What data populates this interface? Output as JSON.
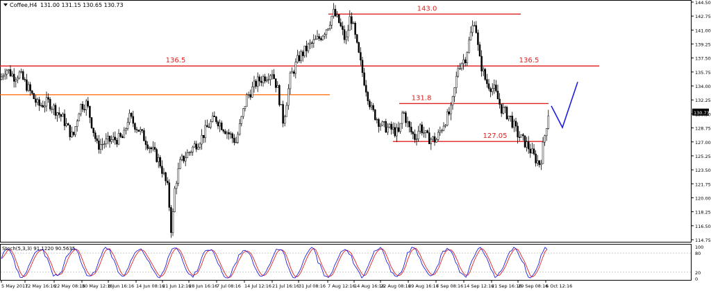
{
  "header": {
    "symbol_label": "Coffee,H4",
    "ohlc_label": "131.00 131.15 130.65 130.73"
  },
  "indicator": {
    "label": "Stoch(5,3,3) 91.1220 90.5635",
    "scale_labels": [
      "100",
      "80",
      "20",
      "0"
    ]
  },
  "price_axis": {
    "labels": [
      "144.50",
      "142.75",
      "141.00",
      "139.25",
      "137.50",
      "135.75",
      "134.00",
      "132.25",
      "130.50",
      "128.75",
      "127.00",
      "125.25",
      "123.50",
      "121.75",
      "120.00",
      "118.25",
      "116.50",
      "114.75"
    ],
    "current_price": "130.73"
  },
  "time_axis": {
    "labels": [
      "5 May 2017",
      "12 May 16:16",
      "22 May 08:16",
      "30 May 12:16",
      "6 Jun 16:16",
      "14 Jun 08:16",
      "21 Jun 12:16",
      "28 Jun 16:16",
      "7 Jul 08:16",
      "14 Jul 12:16",
      "21 Jul 16:16",
      "31 Jul 08:16",
      "7 Aug 12:16",
      "14 Aug 16:16",
      "22 Aug 08:16",
      "29 Aug 16:16",
      "7 Sep 08:16",
      "14 Sep 12:16",
      "21 Sep 16:16",
      "29 Sep 08:16",
      "6 Oct 12:16"
    ]
  },
  "levels": [
    {
      "label": "143.0",
      "value": 143.0,
      "color": "#e02020"
    },
    {
      "label": "136.5",
      "value": 136.5,
      "color": "#e02020"
    },
    {
      "label": "136.5",
      "value": 136.5,
      "color": "#e02020"
    },
    {
      "label": "131.8",
      "value": 131.8,
      "color": "#e02020"
    },
    {
      "label": "127.05",
      "value": 127.05,
      "color": "#e02020"
    },
    {
      "label": "",
      "value": 132.9,
      "color": "#ff6600"
    }
  ],
  "colors": {
    "candle": "#000000",
    "projection": "#1e1ee0",
    "stoch_main": "#1e1ee0",
    "stoch_signal": "#e02020",
    "current_price_bg": "#000000"
  },
  "chart_data": {
    "type": "candlestick",
    "title": "",
    "symbol": "Coffee",
    "timeframe": "H4",
    "ylim": [
      114.75,
      144.5
    ],
    "price_path": [
      [
        0,
        134.8
      ],
      [
        8,
        136.2
      ],
      [
        20,
        135.2
      ],
      [
        28,
        135.5
      ],
      [
        40,
        133.8
      ],
      [
        55,
        131.5
      ],
      [
        70,
        132.0
      ],
      [
        90,
        130.0
      ],
      [
        105,
        127.5
      ],
      [
        115,
        131.5
      ],
      [
        125,
        131.8
      ],
      [
        140,
        126.5
      ],
      [
        160,
        127.2
      ],
      [
        178,
        127.5
      ],
      [
        185,
        130.2
      ],
      [
        200,
        128.5
      ],
      [
        215,
        126.5
      ],
      [
        230,
        124.5
      ],
      [
        242,
        121.0
      ],
      [
        247,
        115.5
      ],
      [
        252,
        121.5
      ],
      [
        260,
        124.5
      ],
      [
        275,
        126.0
      ],
      [
        290,
        127.5
      ],
      [
        300,
        129.0
      ],
      [
        310,
        130.0
      ],
      [
        325,
        128.5
      ],
      [
        340,
        127.0
      ],
      [
        355,
        132.5
      ],
      [
        370,
        134.5
      ],
      [
        392,
        135.8
      ],
      [
        400,
        133.5
      ],
      [
        408,
        129.5
      ],
      [
        418,
        135.0
      ],
      [
        430,
        137.5
      ],
      [
        445,
        139.0
      ],
      [
        460,
        140.0
      ],
      [
        472,
        141.5
      ],
      [
        480,
        143.2
      ],
      [
        488,
        142.0
      ],
      [
        498,
        139.5
      ],
      [
        505,
        143.0
      ],
      [
        515,
        138.5
      ],
      [
        525,
        134.5
      ],
      [
        535,
        131.0
      ],
      [
        550,
        129.0
      ],
      [
        565,
        128.5
      ],
      [
        575,
        128.0
      ],
      [
        580,
        131.0
      ],
      [
        590,
        128.5
      ],
      [
        598,
        127.5
      ],
      [
        605,
        129.0
      ],
      [
        615,
        127.5
      ],
      [
        628,
        127.2
      ],
      [
        640,
        129.5
      ],
      [
        650,
        131.0
      ],
      [
        660,
        136.5
      ],
      [
        670,
        137.5
      ],
      [
        678,
        140.5
      ],
      [
        684,
        142.5
      ],
      [
        690,
        137.5
      ],
      [
        700,
        134.5
      ],
      [
        712,
        133.5
      ],
      [
        722,
        131.2
      ],
      [
        735,
        130.0
      ],
      [
        745,
        128.0
      ],
      [
        760,
        126.5
      ],
      [
        770,
        125.0
      ],
      [
        778,
        124.2
      ],
      [
        784,
        127.5
      ],
      [
        790,
        130.73
      ]
    ],
    "projection": [
      [
        794,
        131.5
      ],
      [
        810,
        128.8
      ],
      [
        832,
        134.5
      ]
    ],
    "stochastic": {
      "k_period": 5,
      "d_period": 3,
      "slowing": 3,
      "main": 91.122,
      "signal": 90.5635,
      "levels": [
        80,
        20
      ]
    }
  }
}
